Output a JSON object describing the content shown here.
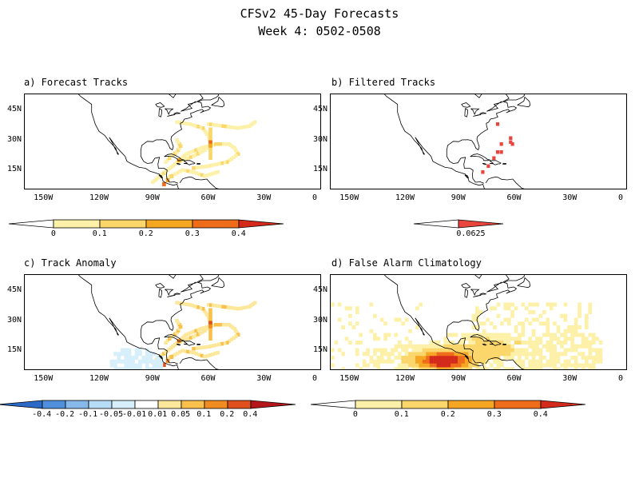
{
  "header": {
    "title": "CFSv2 45-Day Forecasts",
    "subtitle": "Week 4: 0502-0508"
  },
  "panels": [
    {
      "id": "a",
      "label": "a) Forecast Tracks",
      "lon_ticks": [
        "150W",
        "120W",
        "90W",
        "60W",
        "30W",
        "0"
      ],
      "lat_ticks": [
        "45N",
        "30N",
        "15N"
      ],
      "colorbar": {
        "labels": [
          "0",
          "0.1",
          "0.2",
          "0.3",
          "0.4"
        ],
        "colors": [
          "#fdf0a8",
          "#fbd66b",
          "#f5a623",
          "#ef6c1a",
          "#d42a1c"
        ]
      }
    },
    {
      "id": "b",
      "label": "b) Filtered Tracks",
      "lon_ticks": [
        "150W",
        "120W",
        "90W",
        "60W",
        "30W",
        "0"
      ],
      "lat_ticks": [
        "45N",
        "30N",
        "15N"
      ],
      "colorbar": {
        "labels": [
          "0.0625"
        ],
        "colors": [
          "#e8453c"
        ]
      }
    },
    {
      "id": "c",
      "label": "c) Track Anomaly",
      "lon_ticks": [
        "150W",
        "120W",
        "90W",
        "60W",
        "30W",
        "0"
      ],
      "lat_ticks": [
        "45N",
        "30N",
        "15N"
      ],
      "colorbar": {
        "labels": [
          "-0.4",
          "-0.2",
          "-0.1",
          "-0.05",
          "-0.01",
          "0.01",
          "0.05",
          "0.1",
          "0.2",
          "0.4"
        ],
        "colors": [
          "#2b6bc7",
          "#4f8fdb",
          "#86b8ea",
          "#b7dcf5",
          "#d7effb",
          "#ffffff",
          "#fde79a",
          "#f9c14c",
          "#f08c22",
          "#e0501c",
          "#b5161a"
        ]
      }
    },
    {
      "id": "d",
      "label": "d) False Alarm Climatology",
      "lon_ticks": [
        "150W",
        "120W",
        "90W",
        "60W",
        "30W",
        "0"
      ],
      "lat_ticks": [
        "45N",
        "30N",
        "15N"
      ],
      "colorbar": {
        "labels": [
          "0",
          "0.1",
          "0.2",
          "0.3",
          "0.4"
        ],
        "colors": [
          "#fdf0a8",
          "#fbd66b",
          "#f5a623",
          "#ef6c1a",
          "#d42a1c"
        ]
      }
    }
  ]
}
